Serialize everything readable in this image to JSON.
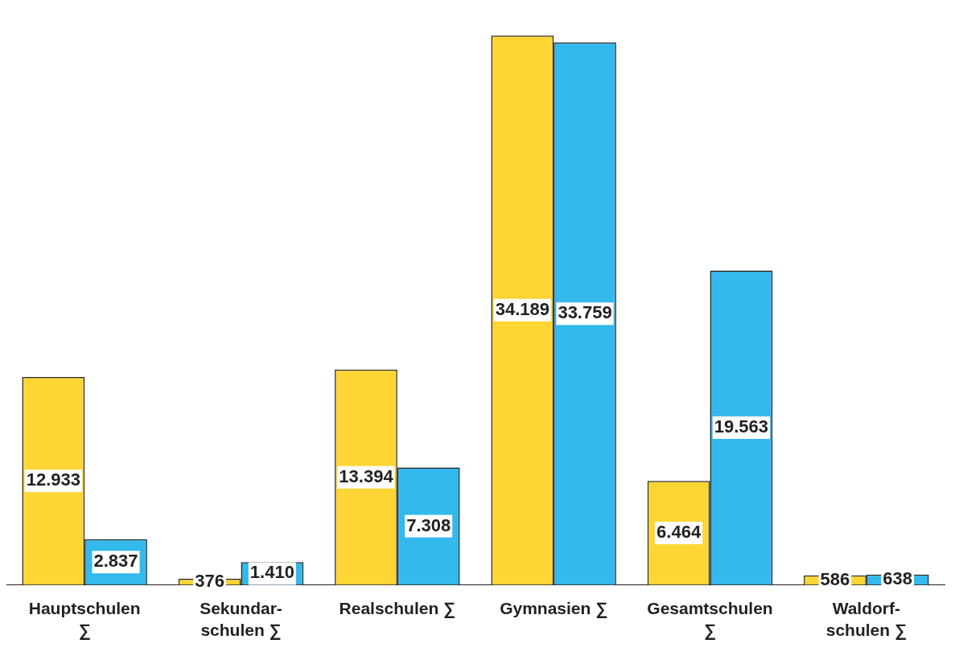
{
  "chart_data": {
    "type": "bar",
    "categories": [
      "Hauptschulen\n∑",
      "Sekundar-\nschulen ∑",
      "Realschulen ∑",
      "Gymnasien ∑",
      "Gesamtschulen\n∑",
      "Waldorf-\nschulen ∑"
    ],
    "series": [
      {
        "color": "#fdd535",
        "values": [
          12933,
          376,
          13394,
          34189,
          6464,
          586
        ],
        "value_labels": [
          "12.933",
          "376",
          "13.394",
          "34.189",
          "6.464",
          "586"
        ]
      },
      {
        "color": "#33b9ec",
        "values": [
          2837,
          1410,
          7308,
          33759,
          19563,
          638
        ],
        "value_labels": [
          "2.837",
          "1.410",
          "7.308",
          "33.759",
          "19.563",
          "638"
        ]
      }
    ],
    "tick_labels": "x",
    "grid": false,
    "legend": false
  }
}
